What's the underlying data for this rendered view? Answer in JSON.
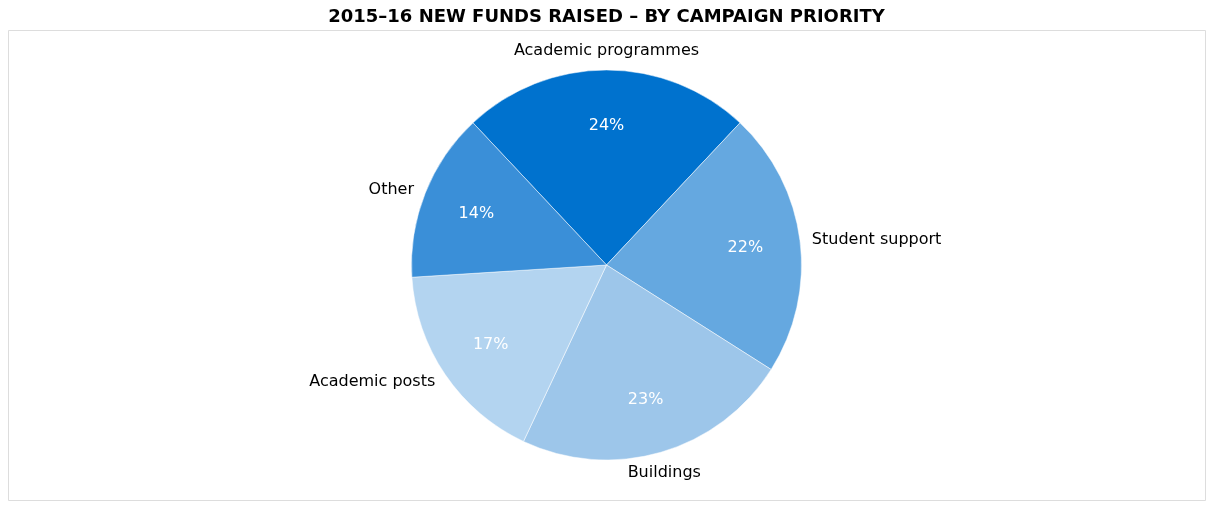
{
  "chart_data": {
    "type": "pie",
    "title": "2015–16 NEW FUNDS RAISED – BY CAMPAIGN PRIORITY",
    "categories": [
      "Academic programmes",
      "Student support",
      "Buildings",
      "Academic posts",
      "Other"
    ],
    "values": [
      24,
      22,
      23,
      17,
      14
    ],
    "value_labels": [
      "24%",
      "22%",
      "23%",
      "17%",
      "14%"
    ],
    "colors": [
      "#0072ce",
      "#65a8e0",
      "#9dc6ea",
      "#b3d4f0",
      "#3a8fd8"
    ],
    "legend": false
  }
}
